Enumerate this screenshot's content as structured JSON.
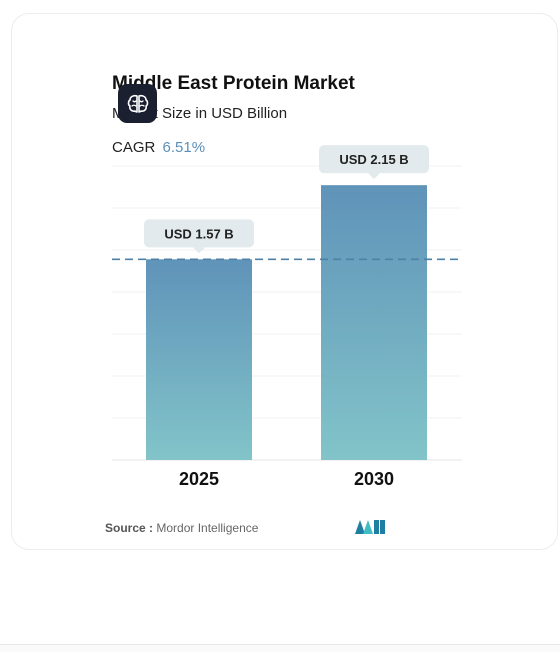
{
  "header": {
    "title": "Middle East Protein Market",
    "subtitle": "Market Size in USD Billion",
    "cagr_label": "CAGR",
    "cagr_value": "6.51%"
  },
  "footer": {
    "source_label": "Source :",
    "source_name": "Mordor Intelligence"
  },
  "icons": {
    "brain": "brain-icon",
    "logo": "mordor-intelligence-logo"
  },
  "colors": {
    "bar_top": "#5f93b9",
    "bar_bottom": "#82c4c9",
    "callout_bg": "#e2eaed",
    "reference_line": "#4f81a6",
    "cagr_accent": "#5b8fb9",
    "logo_primary": "#1e7fa3",
    "logo_secondary": "#3fbcc4"
  },
  "chart_data": {
    "type": "bar",
    "categories": [
      "2025",
      "2030"
    ],
    "values": [
      1.57,
      2.15
    ],
    "data_labels": [
      "USD 1.57 B",
      "USD 2.15 B"
    ],
    "title": "Middle East Protein Market",
    "subtitle": "Market Size in USD Billion",
    "xlabel": "",
    "ylabel": "",
    "ylim": [
      0,
      2.3
    ],
    "grid": true,
    "reference_line": 1.57,
    "legend": "none"
  }
}
